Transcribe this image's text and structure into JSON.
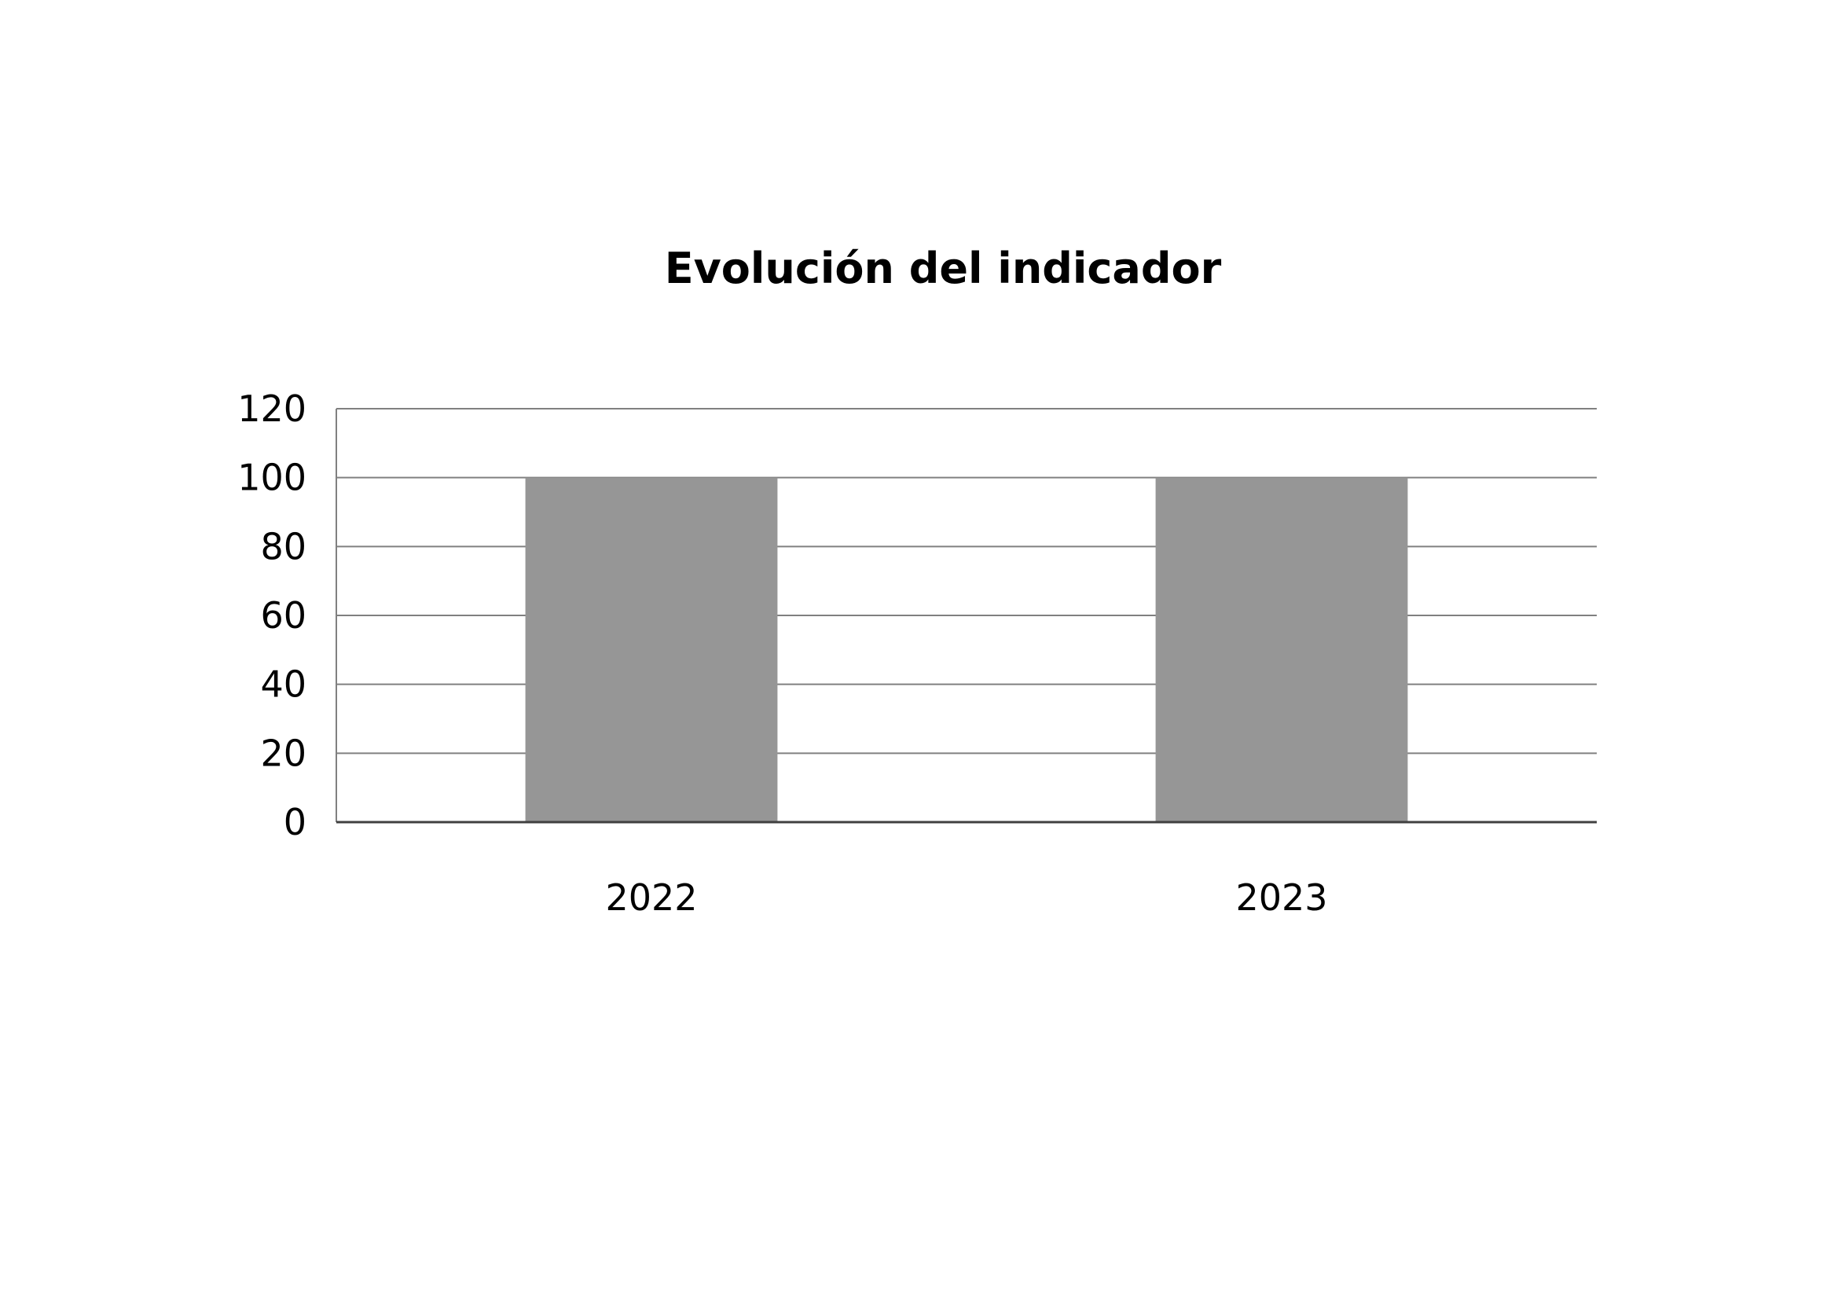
{
  "chart_data": {
    "type": "bar",
    "title": "Evolución del indicador",
    "categories": [
      "2022",
      "2023"
    ],
    "series": [
      {
        "values": [
          100,
          100
        ],
        "color": "#969696"
      }
    ],
    "xlabel": "",
    "ylabel": "",
    "ylim": [
      0,
      120
    ],
    "yticks": [
      0,
      20,
      40,
      60,
      80,
      100,
      120
    ],
    "grid": true,
    "legend": "none"
  }
}
